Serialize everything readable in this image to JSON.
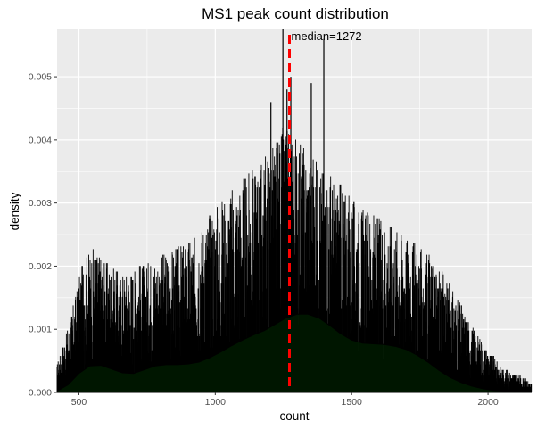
{
  "chart_data": {
    "type": "histogram",
    "title": "MS1 peak count distribution",
    "xlabel": "count",
    "ylabel": "density",
    "xlim": [
      420,
      2160
    ],
    "ylim": [
      0,
      0.00575
    ],
    "x_ticks": [
      500,
      1000,
      1500,
      2000
    ],
    "y_ticks": [
      0.0,
      0.001,
      0.002,
      0.003,
      0.004,
      0.005
    ],
    "y_tick_labels": [
      "0.000",
      "0.001",
      "0.002",
      "0.003",
      "0.004",
      "0.005"
    ],
    "grid": true,
    "histogram_envelope": {
      "x": [
        420,
        470,
        520,
        560,
        600,
        650,
        700,
        750,
        800,
        850,
        900,
        950,
        1000,
        1050,
        1100,
        1150,
        1200,
        1250,
        1300,
        1350,
        1400,
        1450,
        1500,
        1550,
        1600,
        1650,
        1700,
        1750,
        1800,
        1850,
        1900,
        1950,
        2000,
        2050,
        2100,
        2160
      ],
      "density": [
        0.00044,
        0.0012,
        0.0022,
        0.0023,
        0.0021,
        0.0019,
        0.002,
        0.0021,
        0.0022,
        0.0023,
        0.0024,
        0.0027,
        0.003,
        0.0032,
        0.0034,
        0.0036,
        0.0039,
        0.0042,
        0.0041,
        0.0038,
        0.0036,
        0.0034,
        0.0031,
        0.0029,
        0.0028,
        0.0027,
        0.0025,
        0.0023,
        0.0021,
        0.0018,
        0.0014,
        0.001,
        0.0007,
        0.0004,
        0.0003,
        0.00015
      ],
      "peak_spikes": [
        [
          1248,
          0.00575
        ],
        [
          1263,
          0.0048
        ],
        [
          1277,
          0.005
        ],
        [
          1398,
          0.0056
        ],
        [
          1352,
          0.0049
        ],
        [
          1204,
          0.0046
        ]
      ]
    },
    "density_curve": {
      "x": [
        420,
        460,
        500,
        540,
        580,
        620,
        660,
        700,
        740,
        780,
        820,
        860,
        900,
        940,
        980,
        1020,
        1060,
        1100,
        1140,
        1180,
        1220,
        1260,
        1300,
        1340,
        1380,
        1420,
        1460,
        1500,
        1540,
        1580,
        1620,
        1660,
        1700,
        1740,
        1780,
        1820,
        1860,
        1900,
        1940,
        1980,
        2020,
        2060,
        2100,
        2160
      ],
      "density": [
        2e-05,
        0.00012,
        0.0003,
        0.00042,
        0.00043,
        0.00037,
        0.00031,
        0.0003,
        0.00036,
        0.00042,
        0.00044,
        0.00044,
        0.00045,
        0.00048,
        0.00055,
        0.00064,
        0.00074,
        0.00083,
        0.00091,
        0.00098,
        0.00108,
        0.00118,
        0.00124,
        0.00124,
        0.00118,
        0.00106,
        0.00093,
        0.00083,
        0.00078,
        0.00077,
        0.00076,
        0.00073,
        0.00068,
        0.00059,
        0.00048,
        0.00035,
        0.00024,
        0.00016,
        0.0001,
        6e-05,
        3e-05,
        2e-05,
        1e-05,
        0.0
      ]
    },
    "median": 1272,
    "median_label": "median=1272",
    "colors": {
      "panel_bg": "#ebebeb",
      "grid": "#ffffff",
      "bars": "#000000",
      "density_fill": "#001a00",
      "median_line": "#ff0000"
    }
  }
}
